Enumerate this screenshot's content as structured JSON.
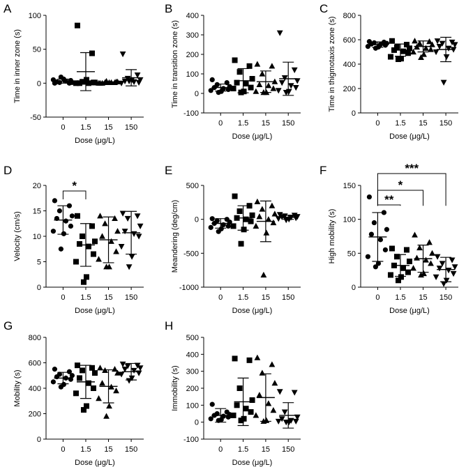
{
  "figure": {
    "xlabel": "Dose (μg/L)",
    "doses": [
      "0",
      "1.5",
      "15",
      "150"
    ]
  },
  "chart_data": [
    {
      "panel": "A",
      "type": "scatter",
      "ylabel": "Time in inner zone (s)",
      "ylim": [
        -50,
        100
      ],
      "yticks": [
        -50,
        0,
        50,
        100
      ],
      "categories": [
        "0",
        "1.5",
        "15",
        "150"
      ],
      "xlabel": "Dose (μg/L)",
      "grid": false,
      "series": [
        {
          "name": "0",
          "marker": "circle",
          "mean": 3,
          "sd": 3,
          "values": [
            0,
            0,
            1,
            1,
            2,
            3,
            4,
            5,
            6,
            9
          ]
        },
        {
          "name": "1.5",
          "marker": "square",
          "mean": 17,
          "sd": 28,
          "values": [
            85,
            44,
            2,
            1,
            0,
            0,
            1,
            0,
            5,
            2
          ]
        },
        {
          "name": "15",
          "marker": "triangle",
          "mean": 1,
          "sd": 1,
          "values": [
            0,
            1,
            1,
            2,
            0,
            1,
            2,
            0,
            1,
            3
          ]
        },
        {
          "name": "150",
          "marker": "triangle-down",
          "mean": 8,
          "sd": 12,
          "values": [
            43,
            12,
            7,
            5,
            3,
            2,
            1,
            0,
            5,
            3
          ]
        }
      ]
    },
    {
      "panel": "B",
      "type": "scatter",
      "ylabel": "Time in transition zone (s)",
      "ylim": [
        -100,
        400
      ],
      "yticks": [
        -100,
        0,
        100,
        200,
        300,
        400
      ],
      "categories": [
        "0",
        "1.5",
        "15",
        "150"
      ],
      "xlabel": "Dose (μg/L)",
      "grid": false,
      "series": [
        {
          "name": "0",
          "marker": "circle",
          "mean": 30,
          "sd": 18,
          "values": [
            70,
            55,
            45,
            35,
            30,
            25,
            20,
            15,
            10,
            5
          ]
        },
        {
          "name": "1.5",
          "marker": "square",
          "mean": 65,
          "sd": 62,
          "values": [
            170,
            140,
            110,
            75,
            55,
            50,
            30,
            25,
            10,
            5
          ]
        },
        {
          "name": "15",
          "marker": "triangle",
          "mean": 60,
          "sd": 55,
          "values": [
            150,
            140,
            100,
            60,
            45,
            40,
            25,
            10,
            5,
            5
          ]
        },
        {
          "name": "150",
          "marker": "triangle-down",
          "mean": 75,
          "sd": 85,
          "values": [
            310,
            120,
            80,
            65,
            55,
            40,
            30,
            15,
            10,
            5
          ]
        }
      ]
    },
    {
      "panel": "C",
      "type": "scatter",
      "ylabel": "Time in thigmotaxis zone (s)",
      "ylim": [
        0,
        800
      ],
      "yticks": [
        0,
        200,
        400,
        600,
        800
      ],
      "categories": [
        "0",
        "1.5",
        "15",
        "150"
      ],
      "xlabel": "Dose (μg/L)",
      "grid": false,
      "series": [
        {
          "name": "0",
          "marker": "circle",
          "mean": 560,
          "sd": 22,
          "values": [
            585,
            580,
            575,
            570,
            565,
            560,
            555,
            545,
            540,
            530
          ]
        },
        {
          "name": "1.5",
          "marker": "square",
          "mean": 515,
          "sd": 50,
          "values": [
            590,
            560,
            540,
            530,
            515,
            505,
            490,
            460,
            445,
            440
          ]
        },
        {
          "name": "15",
          "marker": "triangle",
          "mean": 545,
          "sd": 45,
          "values": [
            590,
            585,
            570,
            560,
            540,
            530,
            520,
            500,
            480,
            455
          ]
        },
        {
          "name": "150",
          "marker": "triangle-down",
          "mean": 520,
          "sd": 100,
          "values": [
            590,
            580,
            570,
            560,
            545,
            530,
            520,
            500,
            460,
            250
          ]
        }
      ]
    },
    {
      "panel": "D",
      "type": "scatter",
      "ylabel": "Velocity (cm/s)",
      "ylim": [
        0,
        20
      ],
      "yticks": [
        0,
        5,
        10,
        15,
        20
      ],
      "categories": [
        "0",
        "1.5",
        "15",
        "150"
      ],
      "xlabel": "Dose (μg/L)",
      "grid": false,
      "significance": [
        {
          "from": "0",
          "to": "1.5",
          "label": "*"
        }
      ],
      "series": [
        {
          "name": "0",
          "marker": "circle",
          "mean": 13.2,
          "sd": 2.8,
          "values": [
            17,
            16,
            15,
            14,
            13.5,
            13,
            12,
            11,
            10.5,
            7.5
          ]
        },
        {
          "name": "1.5",
          "marker": "square",
          "mean": 8.3,
          "sd": 4.2,
          "values": [
            14,
            12,
            10,
            9,
            8.5,
            8,
            6.5,
            5,
            2,
            1
          ]
        },
        {
          "name": "15",
          "marker": "triangle",
          "mean": 9.3,
          "sd": 4.5,
          "values": [
            14,
            13.5,
            12.5,
            11,
            10,
            9,
            7,
            5.5,
            4,
            4
          ]
        },
        {
          "name": "150",
          "marker": "triangle-down",
          "mean": 10.7,
          "sd": 4.2,
          "values": [
            14.5,
            14,
            13.5,
            12,
            11,
            10.5,
            10,
            8,
            6,
            4
          ]
        }
      ]
    },
    {
      "panel": "E",
      "type": "scatter",
      "ylabel": "Meandering (deg/cm)",
      "ylim": [
        -1000,
        500
      ],
      "yticks": [
        -1000,
        -500,
        0,
        500
      ],
      "categories": [
        "0",
        "1.5",
        "15",
        "150"
      ],
      "xlabel": "Dose (μg/L)",
      "grid": false,
      "series": [
        {
          "name": "0",
          "marker": "circle",
          "mean": -60,
          "sd": 70,
          "values": [
            10,
            0,
            -20,
            -40,
            -60,
            -80,
            -100,
            -120,
            -140,
            -180
          ]
        },
        {
          "name": "1.5",
          "marker": "square",
          "mean": 20,
          "sd": 180,
          "values": [
            340,
            200,
            120,
            60,
            20,
            0,
            -30,
            -100,
            -150,
            -360
          ]
        },
        {
          "name": "15",
          "marker": "triangle",
          "mean": -30,
          "sd": 300,
          "values": [
            260,
            200,
            150,
            80,
            40,
            0,
            -50,
            -100,
            -200,
            -820
          ]
        },
        {
          "name": "150",
          "marker": "triangle-down",
          "mean": 30,
          "sd": 30,
          "values": [
            70,
            60,
            50,
            40,
            35,
            30,
            20,
            10,
            0,
            -10
          ]
        }
      ]
    },
    {
      "panel": "F",
      "type": "scatter",
      "ylabel": "High mobility (s)",
      "ylim": [
        0,
        150
      ],
      "yticks": [
        0,
        50,
        100,
        150
      ],
      "categories": [
        "0",
        "1.5",
        "15",
        "150"
      ],
      "xlabel": "Dose (μg/L)",
      "grid": false,
      "significance": [
        {
          "from": "0",
          "to": "1.5",
          "label": "**"
        },
        {
          "from": "0",
          "to": "15",
          "label": "*"
        },
        {
          "from": "0",
          "to": "150",
          "label": "***"
        }
      ],
      "series": [
        {
          "name": "0",
          "marker": "circle",
          "mean": 74,
          "sd": 36,
          "values": [
            133,
            110,
            95,
            85,
            78,
            70,
            55,
            45,
            35,
            30
          ]
        },
        {
          "name": "1.5",
          "marker": "square",
          "mean": 32,
          "sd": 16,
          "values": [
            57,
            55,
            45,
            38,
            32,
            28,
            22,
            18,
            15,
            10
          ]
        },
        {
          "name": "15",
          "marker": "triangle",
          "mean": 42,
          "sd": 20,
          "values": [
            77,
            66,
            58,
            50,
            43,
            40,
            35,
            28,
            20,
            18
          ]
        },
        {
          "name": "150",
          "marker": "triangle-down",
          "mean": 26,
          "sd": 18,
          "values": [
            45,
            40,
            35,
            30,
            28,
            25,
            20,
            15,
            10,
            5
          ]
        }
      ]
    },
    {
      "panel": "G",
      "type": "scatter",
      "ylabel": "Mobility (s)",
      "ylim": [
        0,
        800
      ],
      "yticks": [
        0,
        200,
        400,
        600,
        800
      ],
      "categories": [
        "0",
        "1.5",
        "15",
        "150"
      ],
      "xlabel": "Dose (μg/L)",
      "grid": false,
      "series": [
        {
          "name": "0",
          "marker": "circle",
          "mean": 480,
          "sd": 45,
          "values": [
            550,
            530,
            510,
            500,
            490,
            480,
            470,
            450,
            430,
            410
          ]
        },
        {
          "name": "1.5",
          "marker": "square",
          "mean": 450,
          "sd": 130,
          "values": [
            580,
            560,
            540,
            520,
            480,
            440,
            400,
            360,
            260,
            230
          ]
        },
        {
          "name": "15",
          "marker": "triangle",
          "mean": 415,
          "sd": 130,
          "values": [
            560,
            550,
            540,
            520,
            440,
            410,
            380,
            320,
            260,
            180
          ]
        },
        {
          "name": "150",
          "marker": "triangle-down",
          "mean": 530,
          "sd": 65,
          "values": [
            590,
            580,
            575,
            560,
            550,
            540,
            520,
            510,
            480,
            460
          ]
        }
      ]
    },
    {
      "panel": "H",
      "type": "scatter",
      "ylabel": "Immobility (s)",
      "ylim": [
        -100,
        500
      ],
      "yticks": [
        -100,
        0,
        100,
        200,
        300,
        400,
        500
      ],
      "categories": [
        "0",
        "1.5",
        "15",
        "150"
      ],
      "xlabel": "Dose (μg/L)",
      "grid": false,
      "series": [
        {
          "name": "0",
          "marker": "circle",
          "mean": 40,
          "sd": 40,
          "values": [
            105,
            60,
            50,
            45,
            40,
            35,
            30,
            20,
            15,
            10
          ]
        },
        {
          "name": "1.5",
          "marker": "square",
          "mean": 120,
          "sd": 140,
          "values": [
            375,
            365,
            200,
            130,
            100,
            80,
            60,
            40,
            20,
            10
          ]
        },
        {
          "name": "15",
          "marker": "triangle",
          "mean": 145,
          "sd": 140,
          "values": [
            380,
            340,
            290,
            230,
            160,
            110,
            70,
            40,
            10,
            5
          ]
        },
        {
          "name": "150",
          "marker": "triangle-down",
          "mean": 40,
          "sd": 75,
          "values": [
            180,
            175,
            60,
            30,
            20,
            10,
            5,
            5,
            0,
            0
          ]
        }
      ]
    }
  ]
}
